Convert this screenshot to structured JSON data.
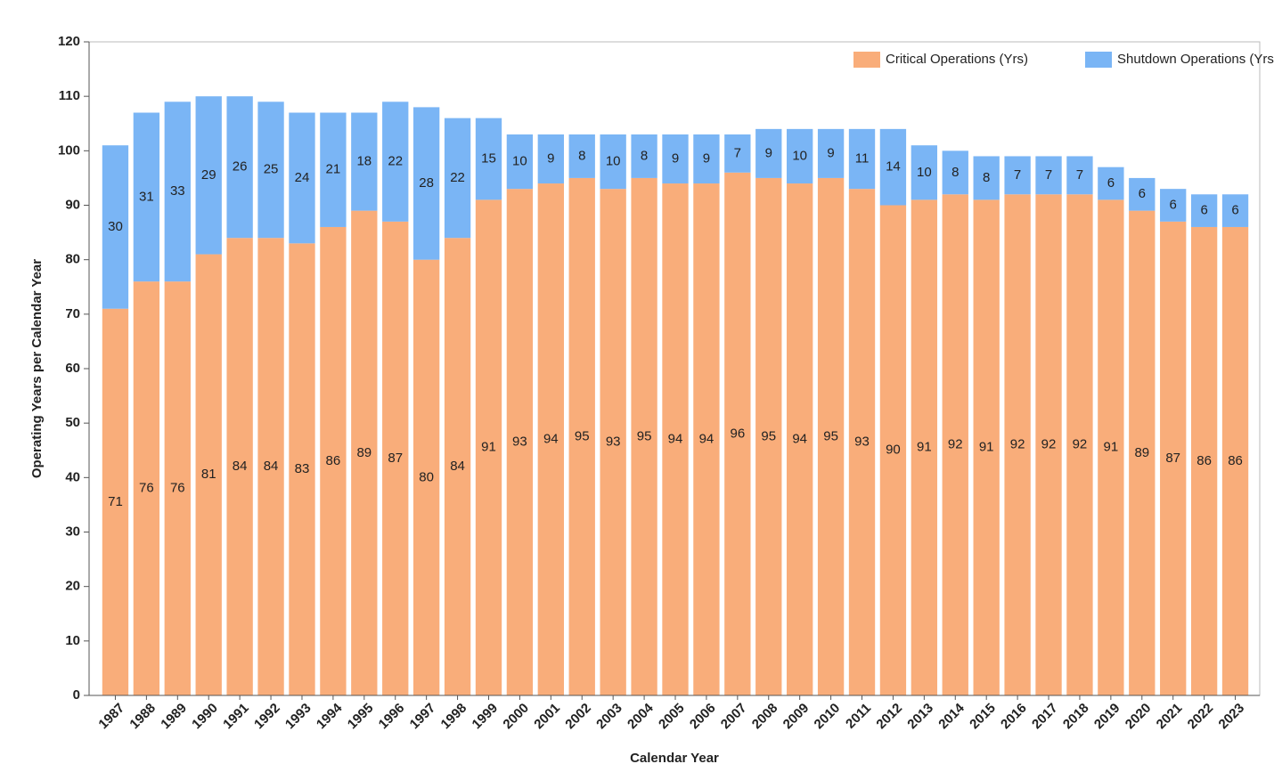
{
  "chart_data": {
    "type": "stacked_bar",
    "x_label": "Calendar Year",
    "y_label": "Operating Years per Calendar Year",
    "categories": [
      "1987",
      "1988",
      "1989",
      "1990",
      "1991",
      "1992",
      "1993",
      "1994",
      "1995",
      "1996",
      "1997",
      "1998",
      "1999",
      "2000",
      "2001",
      "2002",
      "2003",
      "2004",
      "2005",
      "2006",
      "2007",
      "2008",
      "2009",
      "2010",
      "2011",
      "2012",
      "2013",
      "2014",
      "2015",
      "2016",
      "2017",
      "2018",
      "2019",
      "2020",
      "2021",
      "2022",
      "2023"
    ],
    "series": [
      {
        "name": "Critical Operations (Yrs)",
        "color": "#f9ad7a",
        "values": [
          71,
          76,
          76,
          81,
          84,
          84,
          83,
          86,
          89,
          87,
          80,
          84,
          91,
          93,
          94,
          95,
          93,
          95,
          94,
          94,
          96,
          95,
          94,
          95,
          93,
          90,
          91,
          92,
          91,
          92,
          92,
          92,
          91,
          89,
          87,
          86,
          86
        ]
      },
      {
        "name": "Shutdown Operations (Yrs)",
        "color": "#7ab5f5",
        "values": [
          30,
          31,
          33,
          29,
          26,
          25,
          24,
          21,
          18,
          22,
          28,
          22,
          15,
          10,
          9,
          8,
          10,
          8,
          9,
          9,
          7,
          9,
          10,
          9,
          11,
          14,
          10,
          8,
          8,
          7,
          7,
          7,
          6,
          6,
          6,
          6,
          6
        ]
      }
    ],
    "ylim": [
      0,
      120
    ],
    "yticks": [
      0,
      10,
      20,
      30,
      40,
      50,
      60,
      70,
      80,
      90,
      100,
      110,
      120
    ],
    "legend": "upper right"
  }
}
